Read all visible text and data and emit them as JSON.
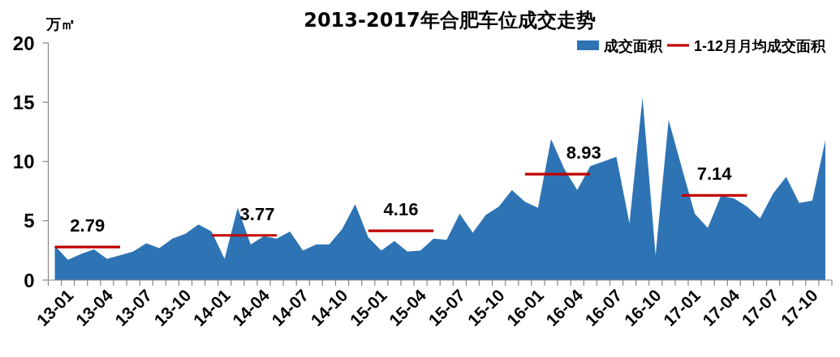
{
  "chart_data": {
    "type": "area",
    "title": "2013-2017年合肥车位成交走势",
    "ylabel": "万㎡",
    "categories": [
      "13-01",
      null,
      null,
      "13-04",
      null,
      null,
      "13-07",
      null,
      null,
      "13-10",
      null,
      null,
      "14-01",
      null,
      null,
      "14-04",
      null,
      null,
      "14-07",
      null,
      null,
      "14-10",
      null,
      null,
      "15-01",
      null,
      null,
      "15-04",
      null,
      null,
      "15-07",
      null,
      null,
      "15-10",
      null,
      null,
      "16-01",
      null,
      null,
      "16-04",
      null,
      null,
      "16-07",
      null,
      null,
      "16-10",
      null,
      null,
      "17-01",
      null,
      null,
      "17-04",
      null,
      null,
      "17-07",
      null,
      null,
      "17-10",
      null,
      null
    ],
    "series": [
      {
        "name": "成交面积",
        "color": "#2e74b5",
        "values": [
          2.9,
          1.7,
          2.2,
          2.6,
          1.8,
          2.1,
          2.4,
          3.1,
          2.7,
          3.5,
          3.9,
          4.7,
          4.1,
          1.8,
          6.1,
          3.0,
          3.7,
          3.5,
          4.1,
          2.5,
          3.0,
          3.0,
          4.3,
          6.4,
          3.6,
          2.5,
          3.3,
          2.4,
          2.5,
          3.5,
          3.4,
          5.6,
          4.0,
          5.5,
          6.2,
          7.6,
          6.6,
          6.1,
          11.9,
          9.4,
          7.6,
          9.6,
          10.0,
          10.4,
          4.8,
          15.4,
          2.1,
          13.5,
          9.5,
          5.6,
          4.4,
          7.1,
          6.9,
          6.2,
          5.2,
          7.3,
          8.7,
          6.5,
          6.7,
          11.8
        ]
      },
      {
        "name": "1-12月月均成交面积",
        "type": "line",
        "color": "#c00000",
        "values": [
          2.79,
          2.79,
          2.79,
          2.79,
          2.79,
          2.79,
          null,
          null,
          null,
          null,
          null,
          null,
          3.77,
          3.77,
          3.77,
          3.77,
          3.77,
          3.77,
          null,
          null,
          null,
          null,
          null,
          null,
          4.16,
          4.16,
          4.16,
          4.16,
          4.16,
          4.16,
          null,
          null,
          null,
          null,
          null,
          null,
          8.93,
          8.93,
          8.93,
          8.93,
          8.93,
          8.93,
          null,
          null,
          null,
          null,
          null,
          null,
          7.14,
          7.14,
          7.14,
          7.14,
          7.14,
          7.14,
          null,
          null,
          null,
          null,
          null,
          null
        ],
        "value_labels": [
          null,
          null,
          "2.79",
          null,
          null,
          null,
          null,
          null,
          null,
          null,
          null,
          null,
          null,
          null,
          null,
          "3.77",
          null,
          null,
          null,
          null,
          null,
          null,
          null,
          null,
          null,
          null,
          "4.16",
          null,
          null,
          null,
          null,
          null,
          null,
          null,
          null,
          null,
          null,
          null,
          null,
          null,
          "8.93",
          null,
          null,
          null,
          null,
          null,
          null,
          null,
          null,
          null,
          "7.14",
          null,
          null,
          null,
          null,
          null,
          null,
          null,
          null,
          null
        ]
      }
    ],
    "ylim": [
      0,
      20
    ],
    "yticks": [
      0,
      5,
      10,
      15,
      20
    ],
    "legend": "top right"
  }
}
